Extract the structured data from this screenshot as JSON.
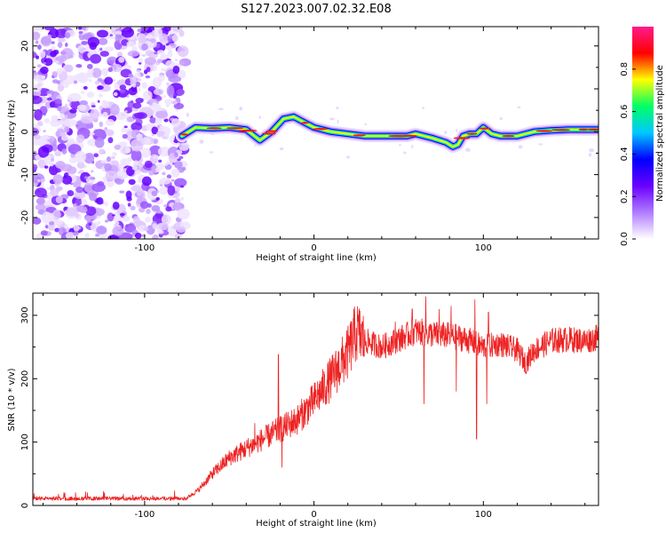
{
  "title": "S127.2023.007.02.32.E08",
  "chart_data": [
    {
      "type": "heatmap",
      "xlabel": "Height of straight line (km)",
      "ylabel": "Frequency (Hz)",
      "xlim": [
        -166,
        168
      ],
      "ylim": [
        -25,
        24.5
      ],
      "x_ticks": [
        -100,
        0,
        100
      ],
      "y_ticks": [
        -20,
        -10,
        0,
        10,
        20
      ],
      "colorbar": {
        "label": "Normalized spectral amplitude",
        "range": [
          0,
          1
        ],
        "ticks": [
          "0.0",
          "0.2",
          "0.4",
          "0.6",
          "0.8"
        ],
        "colors": [
          "#ffffff",
          "#b07cff",
          "#6a00ff",
          "#0000ff",
          "#00c8ff",
          "#00ff66",
          "#ffff00",
          "#ff0000",
          "#ff1a8c"
        ]
      },
      "noise_region_x": [
        -166,
        -76
      ],
      "ridge": {
        "x": [
          -78,
          -70,
          -60,
          -50,
          -40,
          -32,
          -25,
          -18,
          -12,
          -5,
          0,
          10,
          20,
          30,
          40,
          50,
          55,
          60,
          70,
          78,
          82,
          85,
          88,
          92,
          96,
          100,
          105,
          110,
          120,
          130,
          140,
          150,
          160,
          168
        ],
        "y": [
          -1,
          1,
          0.8,
          1,
          0.5,
          -2,
          0,
          3,
          3.5,
          2,
          1,
          0,
          -0.5,
          -1,
          -1,
          -1,
          -1,
          -0.5,
          -1.5,
          -2.5,
          -3.5,
          -3,
          -1,
          -0.5,
          -0.5,
          1,
          -0.5,
          -1,
          -1,
          0,
          0.3,
          0.5,
          0.5,
          0.5
        ]
      }
    },
    {
      "type": "line",
      "xlabel": "Height of straight line (km)",
      "ylabel": "SNR (10 * v/v)",
      "xlim": [
        -166,
        168
      ],
      "ylim": [
        0,
        335
      ],
      "x_ticks": [
        -100,
        0,
        100
      ],
      "y_ticks": [
        0,
        100,
        200,
        300
      ],
      "series": [
        {
          "color": "#ee2222",
          "envelope_x": [
            -166,
            -140,
            -100,
            -80,
            -75,
            -68,
            -60,
            -50,
            -40,
            -30,
            -20,
            -10,
            0,
            10,
            20,
            25,
            30,
            40,
            50,
            60,
            70,
            80,
            90,
            100,
            110,
            120,
            125,
            130,
            140,
            150,
            160,
            168
          ],
          "envelope_y": [
            10,
            10,
            10,
            10,
            12,
            25,
            50,
            75,
            90,
            105,
            120,
            135,
            165,
            200,
            240,
            275,
            260,
            250,
            262,
            275,
            270,
            268,
            262,
            250,
            255,
            245,
            225,
            245,
            260,
            262,
            260,
            265
          ],
          "spikes": [
            [
              -21,
              238
            ],
            [
              -19,
              60
            ],
            [
              -35,
              130
            ],
            [
              5,
              195
            ],
            [
              48,
              290
            ],
            [
              58,
              310
            ],
            [
              66,
              330
            ],
            [
              65,
              160
            ],
            [
              74,
              310
            ],
            [
              81,
              315
            ],
            [
              84,
              180
            ],
            [
              95,
              325
            ],
            [
              96,
              105
            ],
            [
              103,
              305
            ],
            [
              102,
              160
            ]
          ]
        }
      ]
    }
  ]
}
